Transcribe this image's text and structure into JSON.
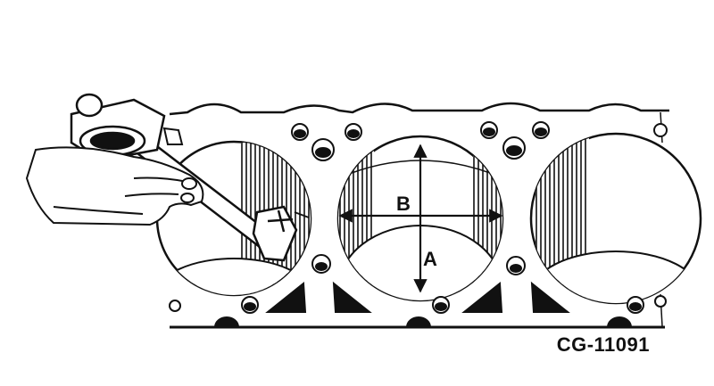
{
  "figure": {
    "id_label": "CG-11091",
    "dimension_labels": {
      "a": "A",
      "b": "B"
    },
    "parts": {
      "engine_block": "engine-block-deck",
      "cylinder_bores": 3,
      "tool": "dial-bore-gauge",
      "hand": "technician-hand"
    },
    "colors": {
      "ink": "#111111",
      "paper": "#ffffff"
    }
  }
}
